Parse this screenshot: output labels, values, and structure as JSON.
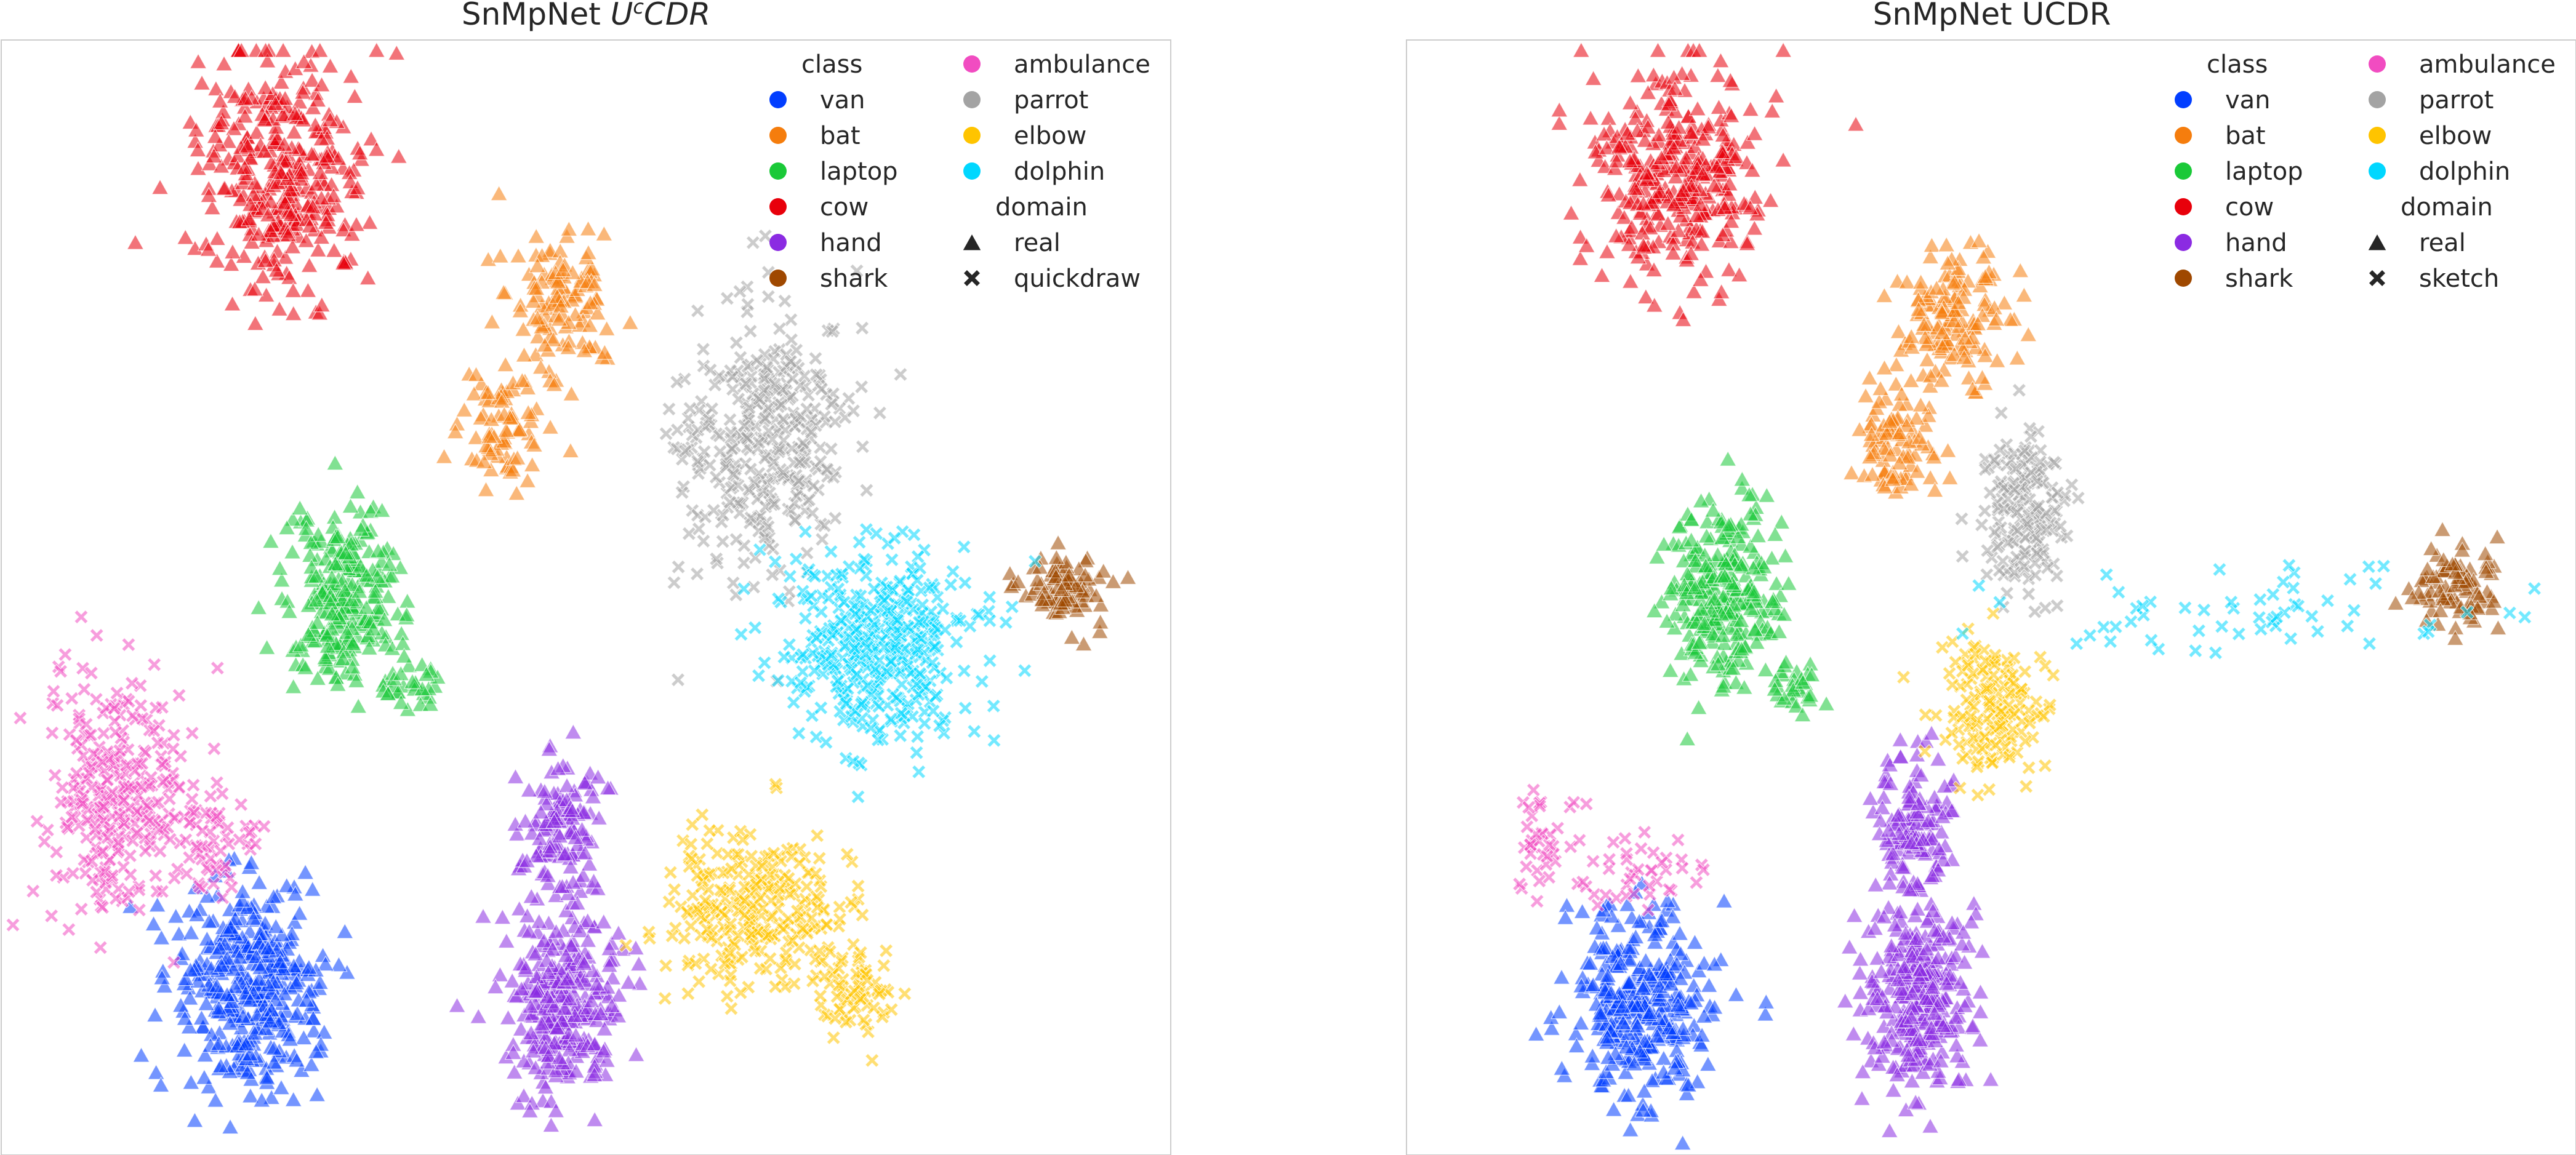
{
  "chart_data": [
    {
      "type": "scatter",
      "title": "SnMpNet ",
      "title_super": "c",
      "title_prefix": "U",
      "title_suffix": "CDR",
      "xlabel": "",
      "ylabel": "",
      "grid": false,
      "legend_placement": "top-right",
      "legend": {
        "class_header": "class",
        "domain_header": "domain",
        "classes": [
          "van",
          "bat",
          "laptop",
          "cow",
          "hand",
          "shark",
          "ambulance",
          "parrot",
          "elbow",
          "dolphin"
        ],
        "domains": [
          "real",
          "quickdraw"
        ]
      },
      "series": [
        {
          "name": "cow",
          "domain": "real",
          "color": "#e8000b",
          "clusters": [
            [
              0.24,
              0.12,
              0.06,
              0.09,
              340
            ]
          ]
        },
        {
          "name": "bat",
          "domain": "real",
          "color": "#f57d0d",
          "clusters": [
            [
              0.48,
              0.23,
              0.04,
              0.06,
              120
            ],
            [
              0.43,
              0.35,
              0.03,
              0.04,
              80
            ]
          ]
        },
        {
          "name": "laptop",
          "domain": "real",
          "color": "#1ac938",
          "clusters": [
            [
              0.29,
              0.5,
              0.04,
              0.07,
              260
            ],
            [
              0.35,
              0.58,
              0.02,
              0.02,
              30
            ]
          ]
        },
        {
          "name": "hand",
          "domain": "real",
          "color": "#8b2be2",
          "clusters": [
            [
              0.48,
              0.7,
              0.03,
              0.05,
              120
            ],
            [
              0.48,
              0.86,
              0.04,
              0.07,
              320
            ]
          ]
        },
        {
          "name": "shark",
          "domain": "real",
          "color": "#9f4800",
          "clusters": [
            [
              0.91,
              0.49,
              0.03,
              0.03,
              90
            ]
          ]
        },
        {
          "name": "van",
          "domain": "real",
          "color": "#023eff",
          "clusters": [
            [
              0.21,
              0.85,
              0.05,
              0.08,
              380
            ]
          ]
        },
        {
          "name": "ambulance",
          "domain": "quickdraw",
          "color": "#f14cc1",
          "clusters": [
            [
              0.1,
              0.68,
              0.05,
              0.09,
              300
            ],
            [
              0.18,
              0.72,
              0.03,
              0.04,
              60
            ]
          ]
        },
        {
          "name": "parrot",
          "domain": "quickdraw",
          "color": "#a3a3a3",
          "clusters": [
            [
              0.65,
              0.36,
              0.06,
              0.1,
              360
            ]
          ]
        },
        {
          "name": "elbow",
          "domain": "quickdraw",
          "color": "#ffc400",
          "clusters": [
            [
              0.64,
              0.78,
              0.06,
              0.06,
              260
            ],
            [
              0.73,
              0.85,
              0.03,
              0.04,
              80
            ]
          ]
        },
        {
          "name": "dolphin",
          "domain": "quickdraw",
          "color": "#00d7ff",
          "clusters": [
            [
              0.75,
              0.54,
              0.07,
              0.07,
              420
            ]
          ]
        }
      ]
    },
    {
      "type": "scatter",
      "title": "SnMpNet UCDR",
      "xlabel": "",
      "ylabel": "",
      "grid": false,
      "legend_placement": "top-right",
      "legend": {
        "class_header": "class",
        "domain_header": "domain",
        "classes": [
          "van",
          "bat",
          "laptop",
          "cow",
          "hand",
          "shark",
          "ambulance",
          "parrot",
          "elbow",
          "dolphin"
        ],
        "domains": [
          "real",
          "sketch"
        ]
      },
      "series": [
        {
          "name": "cow",
          "domain": "real",
          "color": "#e8000b",
          "clusters": [
            [
              0.23,
              0.12,
              0.06,
              0.08,
              330
            ]
          ]
        },
        {
          "name": "bat",
          "domain": "real",
          "color": "#f57d0d",
          "clusters": [
            [
              0.47,
              0.25,
              0.04,
              0.05,
              140
            ],
            [
              0.42,
              0.36,
              0.03,
              0.04,
              90
            ]
          ]
        },
        {
          "name": "laptop",
          "domain": "real",
          "color": "#1ac938",
          "clusters": [
            [
              0.27,
              0.5,
              0.04,
              0.07,
              280
            ],
            [
              0.33,
              0.58,
              0.02,
              0.02,
              30
            ]
          ]
        },
        {
          "name": "hand",
          "domain": "real",
          "color": "#8b2be2",
          "clusters": [
            [
              0.43,
              0.7,
              0.03,
              0.05,
              130
            ],
            [
              0.44,
              0.86,
              0.04,
              0.07,
              320
            ]
          ]
        },
        {
          "name": "shark",
          "domain": "real",
          "color": "#9f4800",
          "clusters": [
            [
              0.9,
              0.49,
              0.03,
              0.03,
              90
            ]
          ]
        },
        {
          "name": "van",
          "domain": "real",
          "color": "#023eff",
          "clusters": [
            [
              0.2,
              0.86,
              0.05,
              0.07,
              340
            ]
          ]
        },
        {
          "name": "ambulance",
          "domain": "sketch",
          "color": "#f14cc1",
          "clusters": [
            [
              0.12,
              0.72,
              0.03,
              0.04,
              40
            ],
            [
              0.2,
              0.75,
              0.04,
              0.03,
              40
            ]
          ]
        },
        {
          "name": "parrot",
          "domain": "sketch",
          "color": "#a3a3a3",
          "clusters": [
            [
              0.53,
              0.42,
              0.03,
              0.06,
              180
            ]
          ]
        },
        {
          "name": "elbow",
          "domain": "sketch",
          "color": "#ffc400",
          "clusters": [
            [
              0.5,
              0.6,
              0.04,
              0.05,
              160
            ]
          ]
        },
        {
          "name": "dolphin",
          "domain": "sketch",
          "color": "#00d7ff",
          "clusters": [
            [
              0.72,
              0.52,
              0.15,
              0.04,
              60
            ]
          ]
        }
      ]
    }
  ]
}
